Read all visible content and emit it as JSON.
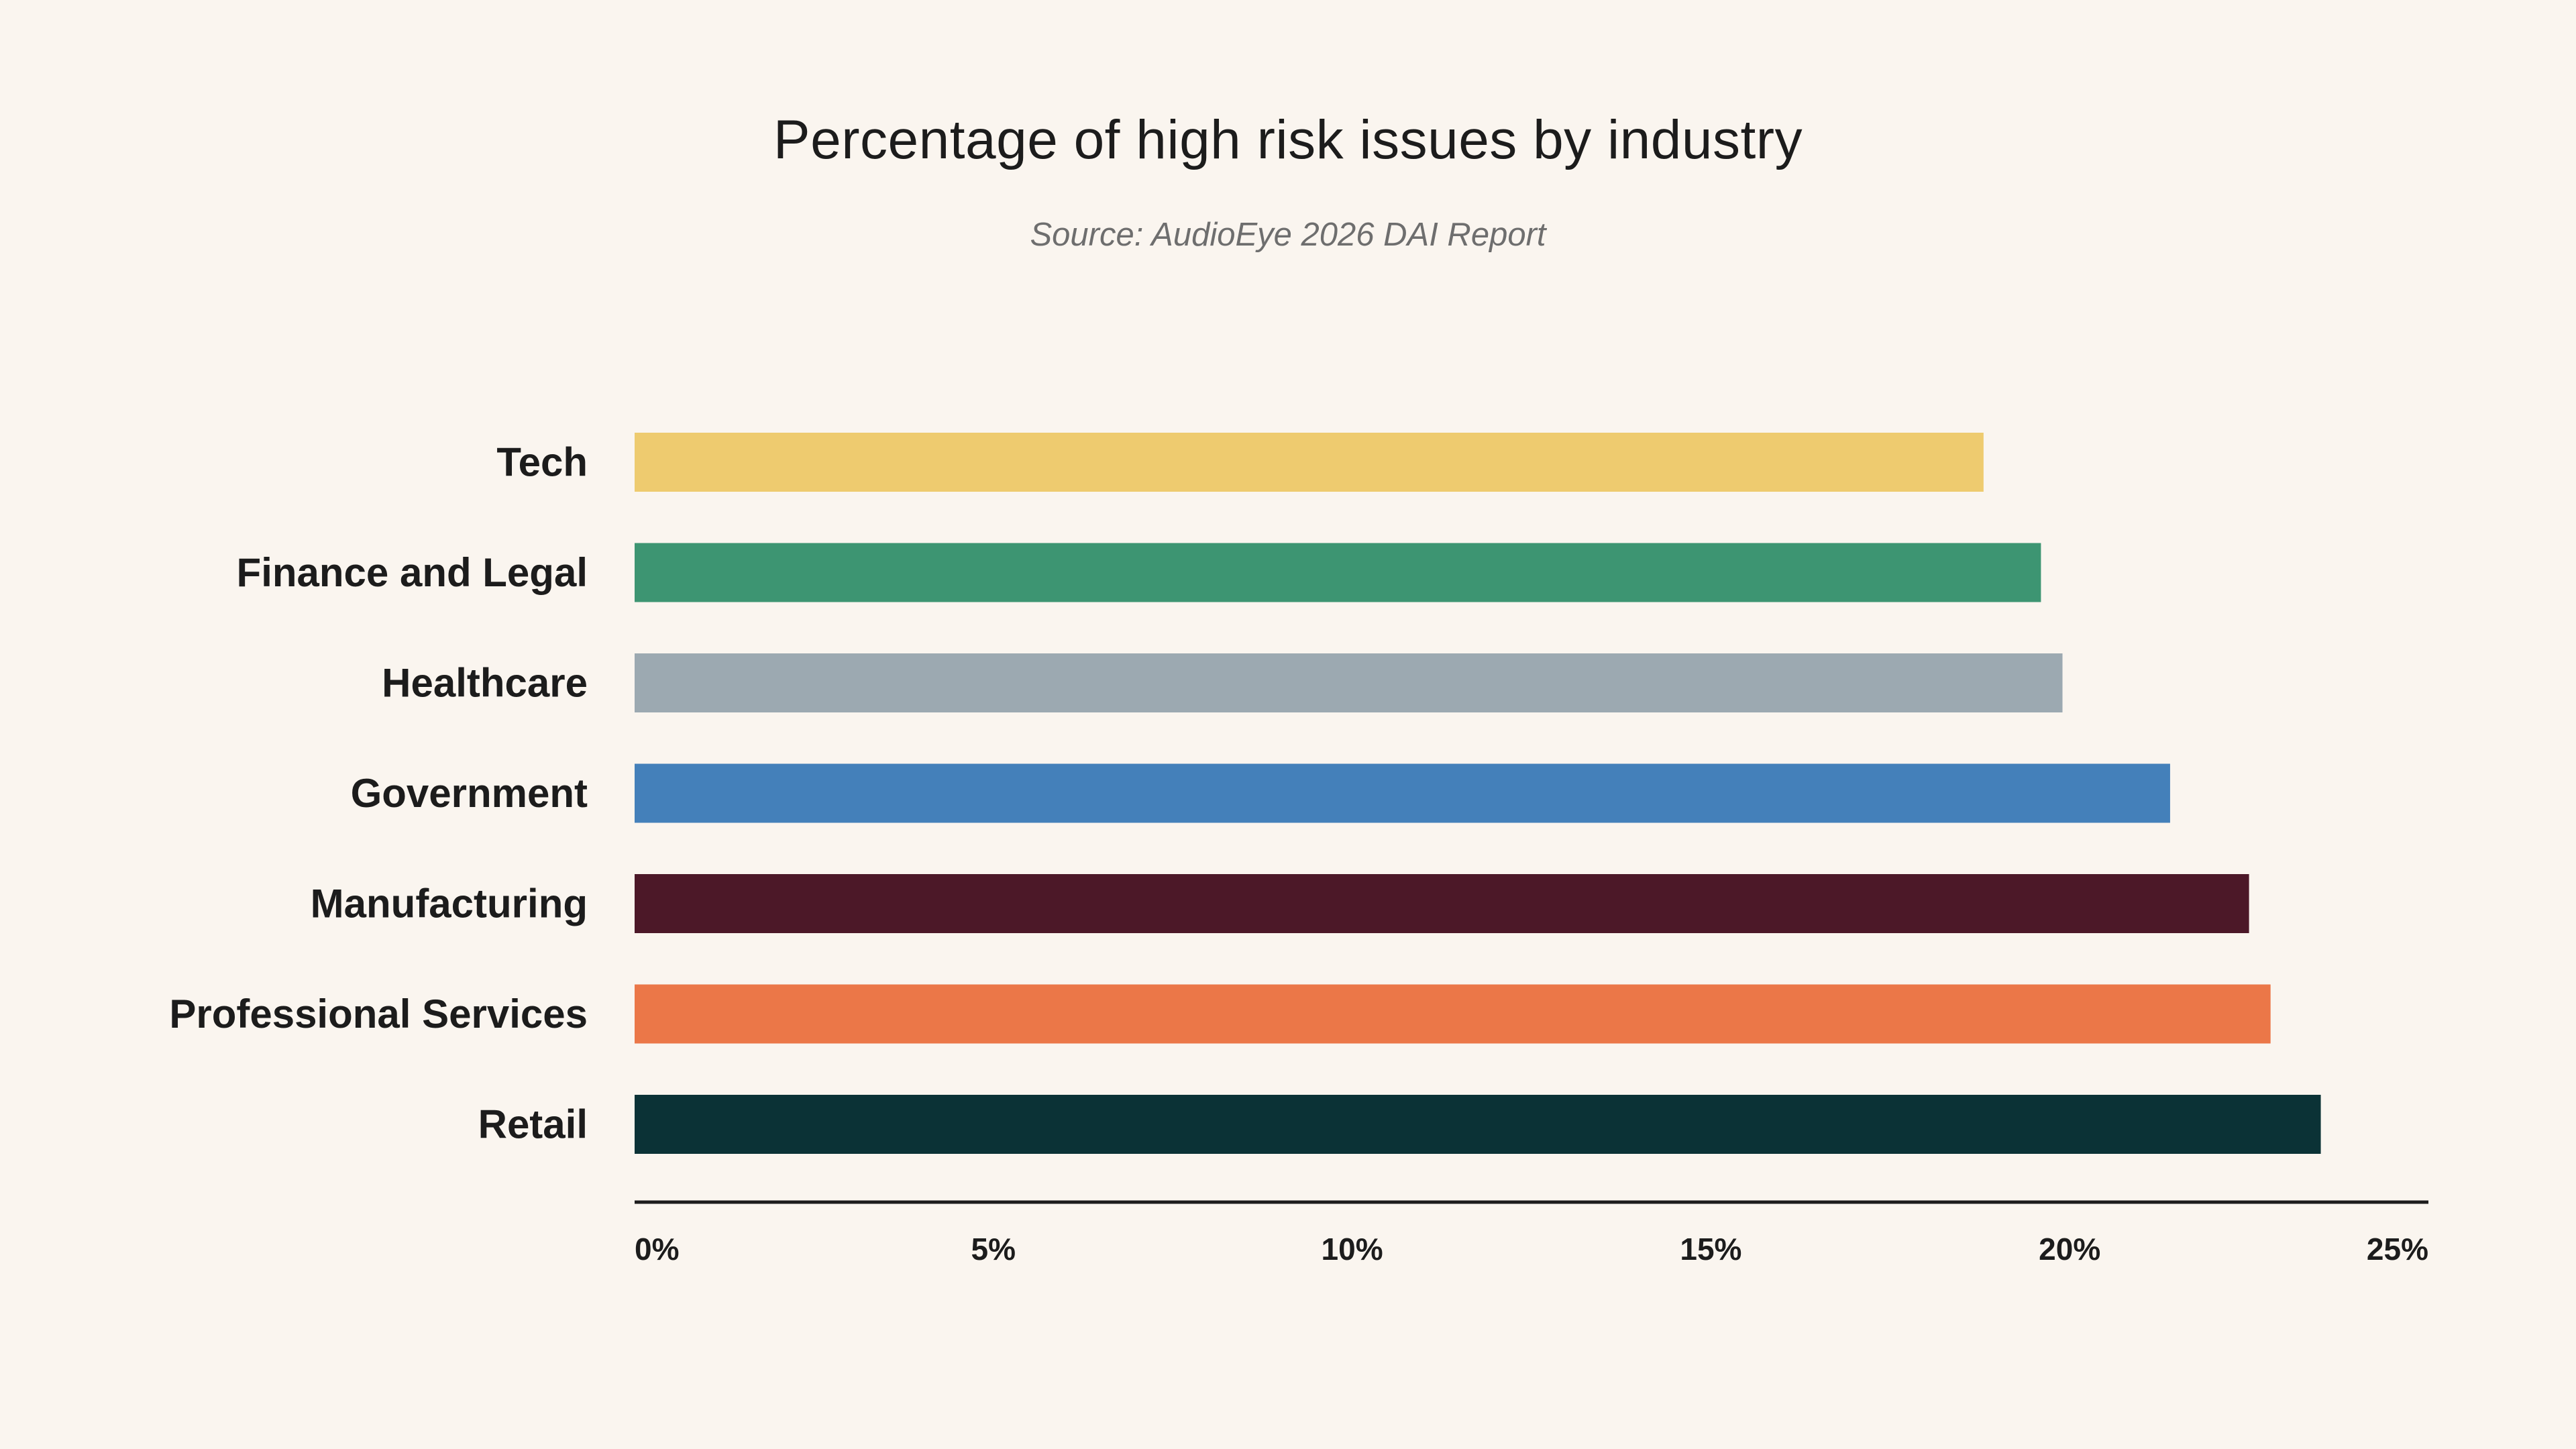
{
  "chart_data": {
    "type": "bar",
    "orientation": "horizontal",
    "title": "Percentage of high risk issues by industry",
    "subtitle": "Source: AudioEye 2026 DAI Report",
    "xlabel": "",
    "ylabel": "",
    "categories": [
      "Tech",
      "Finance and Legal",
      "Healthcare",
      "Government",
      "Manufacturing",
      "Professional Services",
      "Retail"
    ],
    "values": [
      18.8,
      19.6,
      19.9,
      21.4,
      22.5,
      22.8,
      23.5
    ],
    "colors": [
      "#eecb6f",
      "#3d9572",
      "#9ca9b1",
      "#4480ba",
      "#4c1828",
      "#eb7748",
      "#0b3236"
    ],
    "xlim": [
      0,
      25
    ],
    "xticks": [
      0,
      5,
      10,
      15,
      20,
      25
    ],
    "xtick_labels": [
      "0%",
      "5%",
      "10%",
      "15%",
      "20%",
      "25%"
    ],
    "grid": false,
    "legend": "none"
  }
}
